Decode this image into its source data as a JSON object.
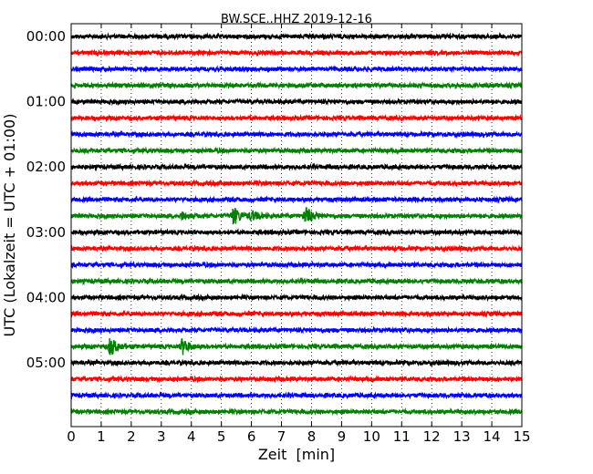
{
  "chart_data": {
    "type": "line",
    "title": "BW.SCE..HHZ 2019-12-16",
    "xlabel": "Zeit  [min]",
    "ylabel": "UTC (Lokalzeit = UTC + 01:00)",
    "xlim": [
      0,
      15
    ],
    "x_ticks": [
      "0",
      "1",
      "2",
      "3",
      "4",
      "5",
      "6",
      "7",
      "8",
      "9",
      "10",
      "11",
      "12",
      "13",
      "14",
      "15"
    ],
    "y_ticks": [
      "00:00",
      "01:00",
      "02:00",
      "03:00",
      "04:00",
      "05:00"
    ],
    "grid": "vertical dotted",
    "trace_colors": [
      "#000000",
      "#ff0000",
      "#0000ff",
      "#008000"
    ],
    "traces": [
      {
        "start": "00:00",
        "events": []
      },
      {
        "start": "00:15",
        "events": []
      },
      {
        "start": "00:30",
        "events": []
      },
      {
        "start": "00:45",
        "events": []
      },
      {
        "start": "01:00",
        "events": []
      },
      {
        "start": "01:15",
        "events": []
      },
      {
        "start": "01:30",
        "events": []
      },
      {
        "start": "01:45",
        "events": []
      },
      {
        "start": "02:00",
        "events": []
      },
      {
        "start": "02:15",
        "events": []
      },
      {
        "start": "02:30",
        "events": []
      },
      {
        "start": "02:45",
        "events": [
          {
            "t": 3.7,
            "amp": 0.35
          },
          {
            "t": 5.4,
            "amp": 1.0
          },
          {
            "t": 6.0,
            "amp": 0.5
          },
          {
            "t": 7.8,
            "amp": 0.9
          }
        ]
      },
      {
        "start": "03:00",
        "events": []
      },
      {
        "start": "03:15",
        "events": []
      },
      {
        "start": "03:30",
        "events": []
      },
      {
        "start": "03:45",
        "events": []
      },
      {
        "start": "04:00",
        "events": []
      },
      {
        "start": "04:15",
        "events": []
      },
      {
        "start": "04:30",
        "events": []
      },
      {
        "start": "04:45",
        "events": [
          {
            "t": 1.3,
            "amp": 1.0
          },
          {
            "t": 3.7,
            "amp": 0.85
          }
        ]
      },
      {
        "start": "05:00",
        "events": []
      },
      {
        "start": "05:15",
        "events": []
      },
      {
        "start": "05:30",
        "events": []
      },
      {
        "start": "05:45",
        "events": []
      }
    ]
  }
}
